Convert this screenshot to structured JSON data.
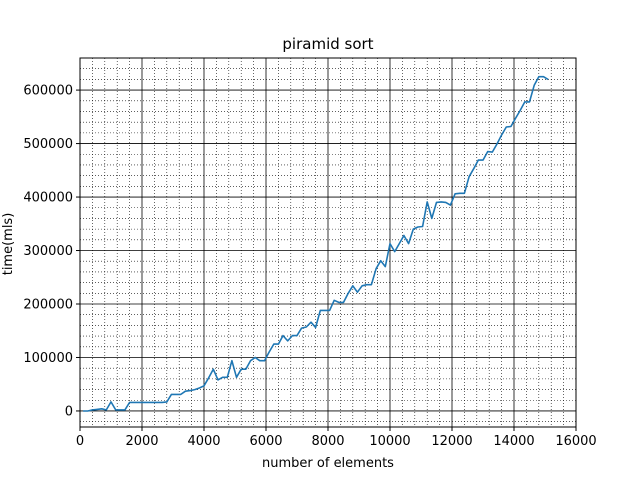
{
  "chart_data": {
    "type": "line",
    "title": "piramid sort",
    "xlabel": "number of elements",
    "ylabel": "time(mls)",
    "xlim": [
      0,
      16000
    ],
    "ylim": [
      -30000,
      660000
    ],
    "xticks": [
      0,
      2000,
      4000,
      6000,
      8000,
      10000,
      12000,
      14000,
      16000
    ],
    "xtick_labels": [
      "0",
      "2000",
      "4000",
      "6000",
      "8000",
      "10000",
      "12000",
      "14000",
      "16000"
    ],
    "yticks": [
      0,
      100000,
      200000,
      300000,
      400000,
      500000,
      600000
    ],
    "ytick_labels": [
      "0",
      "100000",
      "200000",
      "300000",
      "400000",
      "500000",
      "600000"
    ],
    "grid": {
      "major": true,
      "minor": true
    },
    "line_color": "#1f77b4",
    "series": [
      {
        "x": [
          100,
          250,
          400,
          550,
          700,
          850,
          1000,
          1150,
          1300,
          1450,
          1600,
          1750,
          1900,
          2050,
          2200,
          2350,
          2500,
          2650,
          2800,
          2950,
          3100,
          3250,
          3400,
          3550,
          3700,
          3850,
          4000,
          4150,
          4300,
          4450,
          4600,
          4750,
          4900,
          5050,
          5200,
          5350,
          5500,
          5650,
          5800,
          5950,
          6100,
          6250,
          6400,
          6550,
          6700,
          6850,
          7000,
          7150,
          7300,
          7450,
          7600,
          7750,
          7900,
          8050,
          8200,
          8350,
          8500,
          8650,
          8800,
          8950,
          9100,
          9250,
          9400,
          9550,
          9700,
          9850,
          10000,
          10150,
          10300,
          10450,
          10600,
          10750,
          10900,
          11050,
          11200,
          11350,
          11500,
          11650,
          11800,
          11950,
          12100,
          12250,
          12400,
          12550,
          12700,
          12850,
          13000,
          13150,
          13300,
          13450,
          13600,
          13750,
          13900,
          14050,
          14200,
          14350,
          14500,
          14650,
          14800,
          14950,
          15100
        ],
        "y": [
          0,
          0,
          2000,
          3000,
          4000,
          2000,
          17000,
          2000,
          2000,
          2000,
          16000,
          16000,
          16000,
          16000,
          16000,
          16000,
          16000,
          16000,
          17000,
          31000,
          31000,
          31000,
          37000,
          38000,
          40000,
          43000,
          47000,
          62000,
          78000,
          58000,
          63000,
          63000,
          94000,
          63000,
          78000,
          78000,
          94000,
          100000,
          94000,
          94000,
          110000,
          125000,
          125000,
          141000,
          131000,
          141000,
          141000,
          155000,
          157000,
          166000,
          156000,
          188000,
          188000,
          188000,
          207000,
          203000,
          203000,
          220000,
          234000,
          222000,
          234000,
          236000,
          236000,
          266000,
          281000,
          270000,
          313000,
          298000,
          313000,
          328000,
          313000,
          340000,
          344000,
          345000,
          391000,
          360000,
          390000,
          391000,
          390000,
          385000,
          406000,
          407000,
          407000,
          438000,
          453000,
          469000,
          469000,
          485000,
          484000,
          499000,
          516000,
          531000,
          532000,
          547000,
          562000,
          578000,
          578000,
          609000,
          625000,
          625000,
          620000
        ]
      }
    ]
  }
}
